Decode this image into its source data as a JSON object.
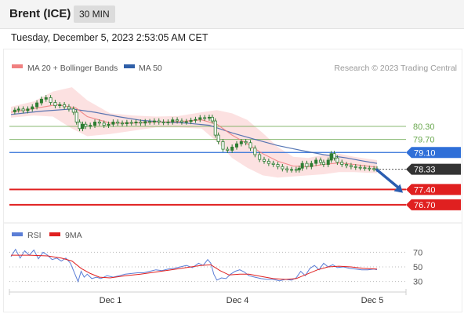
{
  "header": {
    "title": "Brent (ICE)",
    "interval": "30 MIN"
  },
  "timestamp": "Tuesday, December 5, 2023 2:53:05 AM CET",
  "credit": "Research © 2023 Trading Central",
  "colors": {
    "ma20_band": "#f5a9a9",
    "ma50": "#3a5fa8",
    "candle": "#2e7d32",
    "resistance": "#6aa84f",
    "pivot": "#2f6fd8",
    "support": "#e02020",
    "last_price_box": "#333333",
    "rsi": "#5b7ed6",
    "rsi_ma": "#e02020"
  },
  "chart_data": [
    {
      "type": "candlestick",
      "title": "Brent (ICE)",
      "legend": [
        {
          "name": "MA 20 + Bollinger Bands",
          "color": "#f08080"
        },
        {
          "name": "MA 50",
          "color": "#2f5fa8"
        }
      ],
      "x_ticks": [
        "Dec 1",
        "Dec 4",
        "Dec 5"
      ],
      "price_range": [
        75.9,
        82.5
      ],
      "price_series": [
        {
          "x": 0,
          "y": 80.97
        },
        {
          "x": 5,
          "y": 81.05
        },
        {
          "x": 10,
          "y": 81.1
        },
        {
          "x": 16,
          "y": 81.02
        },
        {
          "x": 22,
          "y": 81.1
        },
        {
          "x": 28,
          "y": 81.2
        },
        {
          "x": 34,
          "y": 81.38
        },
        {
          "x": 40,
          "y": 81.55
        },
        {
          "x": 46,
          "y": 81.62
        },
        {
          "x": 52,
          "y": 81.4
        },
        {
          "x": 58,
          "y": 81.25
        },
        {
          "x": 64,
          "y": 81.3
        },
        {
          "x": 70,
          "y": 81.2
        },
        {
          "x": 76,
          "y": 81.1
        },
        {
          "x": 82,
          "y": 80.95
        },
        {
          "x": 86,
          "y": 80.5
        },
        {
          "x": 90,
          "y": 80.2
        },
        {
          "x": 94,
          "y": 80.4
        },
        {
          "x": 98,
          "y": 80.3
        },
        {
          "x": 104,
          "y": 80.35
        },
        {
          "x": 110,
          "y": 80.5
        },
        {
          "x": 116,
          "y": 80.45
        },
        {
          "x": 122,
          "y": 80.35
        },
        {
          "x": 128,
          "y": 80.4
        },
        {
          "x": 134,
          "y": 80.5
        },
        {
          "x": 140,
          "y": 80.45
        },
        {
          "x": 146,
          "y": 80.42
        },
        {
          "x": 152,
          "y": 80.48
        },
        {
          "x": 158,
          "y": 80.46
        },
        {
          "x": 164,
          "y": 80.5
        },
        {
          "x": 170,
          "y": 80.45
        },
        {
          "x": 176,
          "y": 80.52
        },
        {
          "x": 182,
          "y": 80.5
        },
        {
          "x": 188,
          "y": 80.55
        },
        {
          "x": 194,
          "y": 80.5
        },
        {
          "x": 200,
          "y": 80.48
        },
        {
          "x": 206,
          "y": 80.5
        },
        {
          "x": 212,
          "y": 80.6
        },
        {
          "x": 218,
          "y": 80.55
        },
        {
          "x": 224,
          "y": 80.5
        },
        {
          "x": 230,
          "y": 80.52
        },
        {
          "x": 236,
          "y": 80.58
        },
        {
          "x": 242,
          "y": 80.62
        },
        {
          "x": 248,
          "y": 80.7
        },
        {
          "x": 254,
          "y": 80.68
        },
        {
          "x": 260,
          "y": 80.72
        },
        {
          "x": 264,
          "y": 80.55
        },
        {
          "x": 268,
          "y": 79.9
        },
        {
          "x": 272,
          "y": 79.6
        },
        {
          "x": 278,
          "y": 79.25
        },
        {
          "x": 284,
          "y": 79.2
        },
        {
          "x": 290,
          "y": 79.35
        },
        {
          "x": 296,
          "y": 79.5
        },
        {
          "x": 302,
          "y": 79.6
        },
        {
          "x": 308,
          "y": 79.55
        },
        {
          "x": 314,
          "y": 79.3
        },
        {
          "x": 320,
          "y": 79.0
        },
        {
          "x": 326,
          "y": 78.78
        },
        {
          "x": 332,
          "y": 78.7
        },
        {
          "x": 338,
          "y": 78.6
        },
        {
          "x": 344,
          "y": 78.55
        },
        {
          "x": 350,
          "y": 78.45
        },
        {
          "x": 356,
          "y": 78.35
        },
        {
          "x": 362,
          "y": 78.3
        },
        {
          "x": 368,
          "y": 78.32
        },
        {
          "x": 374,
          "y": 78.3
        },
        {
          "x": 378,
          "y": 78.38
        },
        {
          "x": 382,
          "y": 78.6
        },
        {
          "x": 388,
          "y": 78.45
        },
        {
          "x": 394,
          "y": 78.6
        },
        {
          "x": 400,
          "y": 78.75
        },
        {
          "x": 406,
          "y": 78.65
        },
        {
          "x": 410,
          "y": 78.55
        },
        {
          "x": 416,
          "y": 78.75
        },
        {
          "x": 420,
          "y": 79.05
        },
        {
          "x": 424,
          "y": 78.85
        },
        {
          "x": 428,
          "y": 78.65
        },
        {
          "x": 434,
          "y": 78.55
        },
        {
          "x": 440,
          "y": 78.5
        },
        {
          "x": 446,
          "y": 78.45
        },
        {
          "x": 452,
          "y": 78.42
        },
        {
          "x": 458,
          "y": 78.4
        },
        {
          "x": 464,
          "y": 78.38
        },
        {
          "x": 470,
          "y": 78.36
        },
        {
          "x": 476,
          "y": 78.35
        },
        {
          "x": 480,
          "y": 78.33
        }
      ],
      "ma50": [
        {
          "x": 0,
          "y": 80.85
        },
        {
          "x": 40,
          "y": 81.0
        },
        {
          "x": 80,
          "y": 81.1
        },
        {
          "x": 110,
          "y": 80.95
        },
        {
          "x": 140,
          "y": 80.75
        },
        {
          "x": 170,
          "y": 80.58
        },
        {
          "x": 200,
          "y": 80.5
        },
        {
          "x": 230,
          "y": 80.45
        },
        {
          "x": 260,
          "y": 80.35
        },
        {
          "x": 290,
          "y": 80.0
        },
        {
          "x": 320,
          "y": 79.7
        },
        {
          "x": 350,
          "y": 79.42
        },
        {
          "x": 380,
          "y": 79.2
        },
        {
          "x": 410,
          "y": 79.0
        },
        {
          "x": 440,
          "y": 78.85
        },
        {
          "x": 460,
          "y": 78.72
        },
        {
          "x": 480,
          "y": 78.6
        }
      ],
      "ma20": [
        {
          "x": 0,
          "y": 80.95
        },
        {
          "x": 30,
          "y": 81.12
        },
        {
          "x": 60,
          "y": 81.3
        },
        {
          "x": 85,
          "y": 81.15
        },
        {
          "x": 100,
          "y": 80.75
        },
        {
          "x": 130,
          "y": 80.45
        },
        {
          "x": 160,
          "y": 80.45
        },
        {
          "x": 190,
          "y": 80.5
        },
        {
          "x": 220,
          "y": 80.52
        },
        {
          "x": 250,
          "y": 80.6
        },
        {
          "x": 270,
          "y": 80.4
        },
        {
          "x": 290,
          "y": 79.9
        },
        {
          "x": 310,
          "y": 79.5
        },
        {
          "x": 330,
          "y": 79.05
        },
        {
          "x": 350,
          "y": 78.7
        },
        {
          "x": 370,
          "y": 78.48
        },
        {
          "x": 390,
          "y": 78.45
        },
        {
          "x": 410,
          "y": 78.55
        },
        {
          "x": 430,
          "y": 78.62
        },
        {
          "x": 450,
          "y": 78.55
        },
        {
          "x": 480,
          "y": 78.42
        }
      ],
      "bollinger_band": [
        {
          "x": 0,
          "upper": 81.2,
          "lower": 80.7
        },
        {
          "x": 30,
          "upper": 81.45,
          "lower": 80.8
        },
        {
          "x": 55,
          "upper": 81.9,
          "lower": 80.75
        },
        {
          "x": 80,
          "upper": 82.1,
          "lower": 80.2
        },
        {
          "x": 100,
          "upper": 81.5,
          "lower": 79.85
        },
        {
          "x": 130,
          "upper": 80.9,
          "lower": 79.95
        },
        {
          "x": 160,
          "upper": 80.8,
          "lower": 80.1
        },
        {
          "x": 190,
          "upper": 80.75,
          "lower": 80.25
        },
        {
          "x": 220,
          "upper": 80.78,
          "lower": 80.25
        },
        {
          "x": 250,
          "upper": 80.95,
          "lower": 80.2
        },
        {
          "x": 270,
          "upper": 81.05,
          "lower": 79.6
        },
        {
          "x": 290,
          "upper": 80.9,
          "lower": 78.85
        },
        {
          "x": 310,
          "upper": 80.6,
          "lower": 78.4
        },
        {
          "x": 330,
          "upper": 80.0,
          "lower": 78.05
        },
        {
          "x": 350,
          "upper": 79.35,
          "lower": 77.95
        },
        {
          "x": 370,
          "upper": 78.9,
          "lower": 78.0
        },
        {
          "x": 390,
          "upper": 78.85,
          "lower": 78.05
        },
        {
          "x": 410,
          "upper": 79.0,
          "lower": 78.1
        },
        {
          "x": 430,
          "upper": 79.05,
          "lower": 78.2
        },
        {
          "x": 450,
          "upper": 78.9,
          "lower": 78.2
        },
        {
          "x": 480,
          "upper": 78.75,
          "lower": 78.15
        }
      ],
      "levels": [
        {
          "label": "80.30",
          "value": 80.3,
          "kind": "resistance"
        },
        {
          "label": "79.70",
          "value": 79.7,
          "kind": "resistance"
        },
        {
          "label": "79.10",
          "value": 79.1,
          "kind": "pivot"
        },
        {
          "label": "78.33",
          "value": 78.33,
          "kind": "last"
        },
        {
          "label": "77.40",
          "value": 77.4,
          "kind": "support"
        },
        {
          "label": "76.70",
          "value": 76.7,
          "kind": "support"
        }
      ],
      "forecast_arrow": {
        "from": {
          "x": 480,
          "y": 78.3
        },
        "to": {
          "x": 514,
          "y": 77.25
        }
      }
    },
    {
      "type": "line",
      "title": "RSI",
      "legend": [
        {
          "name": "RSI",
          "color": "#5b7ed6"
        },
        {
          "name": "9MA",
          "color": "#e02020"
        }
      ],
      "y_ticks": [
        "70",
        "50",
        "30"
      ],
      "y_range": [
        20,
        80
      ],
      "rsi": [
        {
          "x": 0,
          "y": 64
        },
        {
          "x": 6,
          "y": 74
        },
        {
          "x": 12,
          "y": 62
        },
        {
          "x": 18,
          "y": 72
        },
        {
          "x": 24,
          "y": 66
        },
        {
          "x": 30,
          "y": 73
        },
        {
          "x": 36,
          "y": 61
        },
        {
          "x": 42,
          "y": 70
        },
        {
          "x": 48,
          "y": 66
        },
        {
          "x": 54,
          "y": 60
        },
        {
          "x": 60,
          "y": 62
        },
        {
          "x": 66,
          "y": 58
        },
        {
          "x": 72,
          "y": 62
        },
        {
          "x": 78,
          "y": 55
        },
        {
          "x": 84,
          "y": 40
        },
        {
          "x": 88,
          "y": 30
        },
        {
          "x": 92,
          "y": 44
        },
        {
          "x": 96,
          "y": 36
        },
        {
          "x": 100,
          "y": 40
        },
        {
          "x": 106,
          "y": 34
        },
        {
          "x": 112,
          "y": 36
        },
        {
          "x": 118,
          "y": 34
        },
        {
          "x": 126,
          "y": 38
        },
        {
          "x": 134,
          "y": 36
        },
        {
          "x": 142,
          "y": 38
        },
        {
          "x": 150,
          "y": 40
        },
        {
          "x": 158,
          "y": 41
        },
        {
          "x": 166,
          "y": 42
        },
        {
          "x": 174,
          "y": 42
        },
        {
          "x": 182,
          "y": 44
        },
        {
          "x": 190,
          "y": 46
        },
        {
          "x": 198,
          "y": 45
        },
        {
          "x": 206,
          "y": 47
        },
        {
          "x": 214,
          "y": 48
        },
        {
          "x": 222,
          "y": 50
        },
        {
          "x": 230,
          "y": 52
        },
        {
          "x": 238,
          "y": 49
        },
        {
          "x": 246,
          "y": 55
        },
        {
          "x": 252,
          "y": 52
        },
        {
          "x": 258,
          "y": 60
        },
        {
          "x": 262,
          "y": 55
        },
        {
          "x": 266,
          "y": 40
        },
        {
          "x": 270,
          "y": 32
        },
        {
          "x": 276,
          "y": 35
        },
        {
          "x": 282,
          "y": 34
        },
        {
          "x": 288,
          "y": 40
        },
        {
          "x": 294,
          "y": 44
        },
        {
          "x": 300,
          "y": 46
        },
        {
          "x": 306,
          "y": 43
        },
        {
          "x": 312,
          "y": 38
        },
        {
          "x": 320,
          "y": 36
        },
        {
          "x": 328,
          "y": 34
        },
        {
          "x": 336,
          "y": 33
        },
        {
          "x": 344,
          "y": 33
        },
        {
          "x": 352,
          "y": 31
        },
        {
          "x": 360,
          "y": 33
        },
        {
          "x": 368,
          "y": 32
        },
        {
          "x": 374,
          "y": 35
        },
        {
          "x": 380,
          "y": 44
        },
        {
          "x": 386,
          "y": 38
        },
        {
          "x": 392,
          "y": 48
        },
        {
          "x": 398,
          "y": 52
        },
        {
          "x": 404,
          "y": 46
        },
        {
          "x": 410,
          "y": 55
        },
        {
          "x": 416,
          "y": 50
        },
        {
          "x": 422,
          "y": 53
        },
        {
          "x": 428,
          "y": 49
        },
        {
          "x": 436,
          "y": 50
        },
        {
          "x": 444,
          "y": 48
        },
        {
          "x": 452,
          "y": 47
        },
        {
          "x": 460,
          "y": 46
        },
        {
          "x": 468,
          "y": 46
        },
        {
          "x": 476,
          "y": 47
        },
        {
          "x": 480,
          "y": 46
        }
      ],
      "rsi_9ma": [
        {
          "x": 0,
          "y": 66
        },
        {
          "x": 24,
          "y": 66
        },
        {
          "x": 48,
          "y": 65
        },
        {
          "x": 66,
          "y": 62
        },
        {
          "x": 80,
          "y": 58
        },
        {
          "x": 92,
          "y": 48
        },
        {
          "x": 104,
          "y": 41
        },
        {
          "x": 116,
          "y": 36
        },
        {
          "x": 130,
          "y": 35
        },
        {
          "x": 150,
          "y": 38
        },
        {
          "x": 170,
          "y": 40
        },
        {
          "x": 190,
          "y": 43
        },
        {
          "x": 210,
          "y": 46
        },
        {
          "x": 230,
          "y": 49
        },
        {
          "x": 250,
          "y": 52
        },
        {
          "x": 262,
          "y": 53
        },
        {
          "x": 274,
          "y": 45
        },
        {
          "x": 286,
          "y": 39
        },
        {
          "x": 300,
          "y": 40
        },
        {
          "x": 312,
          "y": 40
        },
        {
          "x": 328,
          "y": 37
        },
        {
          "x": 344,
          "y": 34
        },
        {
          "x": 360,
          "y": 33
        },
        {
          "x": 374,
          "y": 34
        },
        {
          "x": 388,
          "y": 40
        },
        {
          "x": 402,
          "y": 46
        },
        {
          "x": 416,
          "y": 50
        },
        {
          "x": 430,
          "y": 51
        },
        {
          "x": 446,
          "y": 50
        },
        {
          "x": 462,
          "y": 48
        },
        {
          "x": 480,
          "y": 47
        }
      ]
    }
  ]
}
